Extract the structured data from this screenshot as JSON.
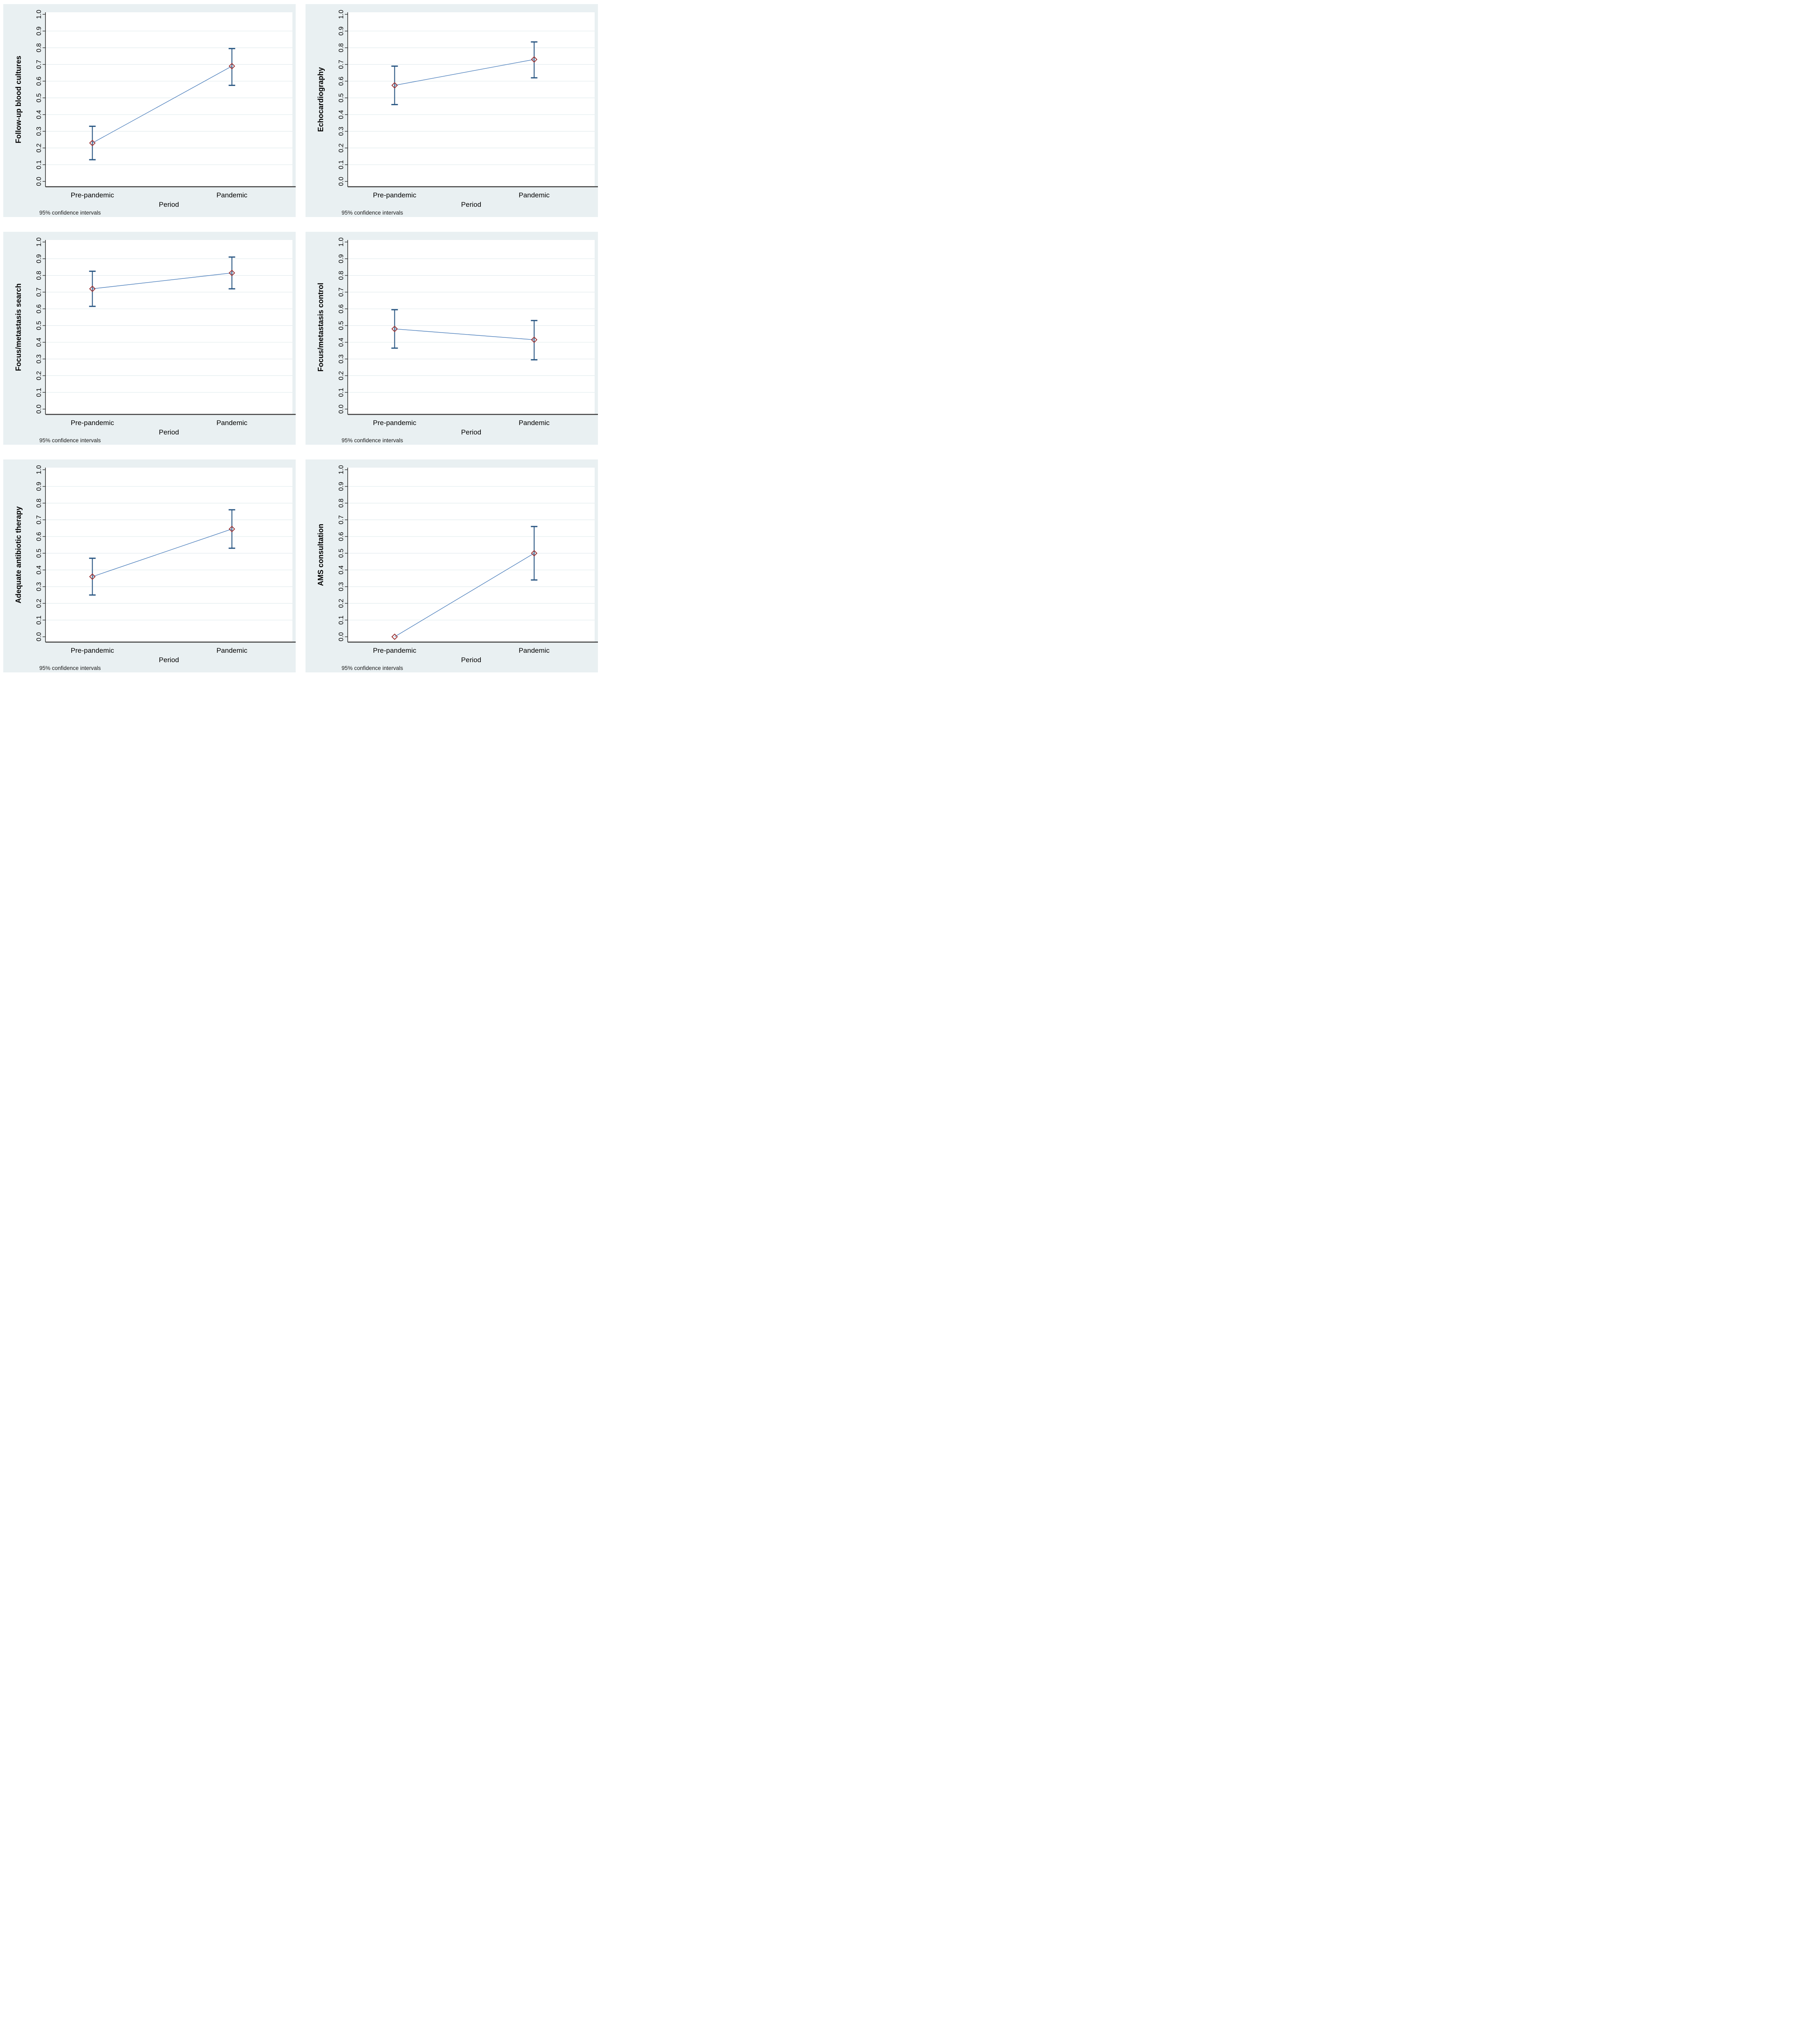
{
  "chart_data": {
    "type": "line",
    "layout": "2x3-grid",
    "x_categories": [
      "Pre-pandemic",
      "Pandemic"
    ],
    "xlabel": "Period",
    "note": "95% confidence intervals",
    "ylim": [
      0.0,
      1.0
    ],
    "ytick_step": 0.1,
    "grid": true,
    "legend": "none",
    "colors": {
      "panel_background": "#e9f0f2",
      "plot_background": "#ffffff",
      "gridline": "#e1ebee",
      "axis_line": "#3c3c3c",
      "tick": "#303030",
      "connect_line": "#4f81bd",
      "error_bar": "#2a5783",
      "marker_outline": "#9d3739"
    },
    "panels": [
      {
        "ylabel": "Follow-up blood cultures",
        "points": [
          {
            "category": "Pre-pandemic",
            "estimate": 0.23,
            "ci_low": 0.13,
            "ci_high": 0.33
          },
          {
            "category": "Pandemic",
            "estimate": 0.69,
            "ci_low": 0.575,
            "ci_high": 0.795
          }
        ]
      },
      {
        "ylabel": "Echocardiography",
        "points": [
          {
            "category": "Pre-pandemic",
            "estimate": 0.575,
            "ci_low": 0.46,
            "ci_high": 0.69
          },
          {
            "category": "Pandemic",
            "estimate": 0.73,
            "ci_low": 0.62,
            "ci_high": 0.835
          }
        ]
      },
      {
        "ylabel": "Focus/metastasis search",
        "points": [
          {
            "category": "Pre-pandemic",
            "estimate": 0.72,
            "ci_low": 0.615,
            "ci_high": 0.825
          },
          {
            "category": "Pandemic",
            "estimate": 0.815,
            "ci_low": 0.72,
            "ci_high": 0.91
          }
        ]
      },
      {
        "ylabel": "Focus/metastasis control",
        "points": [
          {
            "category": "Pre-pandemic",
            "estimate": 0.48,
            "ci_low": 0.365,
            "ci_high": 0.595
          },
          {
            "category": "Pandemic",
            "estimate": 0.415,
            "ci_low": 0.295,
            "ci_high": 0.53
          }
        ]
      },
      {
        "ylabel": "Adequate antibiotic therapy",
        "points": [
          {
            "category": "Pre-pandemic",
            "estimate": 0.36,
            "ci_low": 0.25,
            "ci_high": 0.47
          },
          {
            "category": "Pandemic",
            "estimate": 0.645,
            "ci_low": 0.53,
            "ci_high": 0.76
          }
        ]
      },
      {
        "ylabel": "AMS consultation",
        "points": [
          {
            "category": "Pre-pandemic",
            "estimate": 0.0,
            "ci_low": 0.0,
            "ci_high": 0.0
          },
          {
            "category": "Pandemic",
            "estimate": 0.5,
            "ci_low": 0.34,
            "ci_high": 0.66
          }
        ]
      }
    ]
  }
}
